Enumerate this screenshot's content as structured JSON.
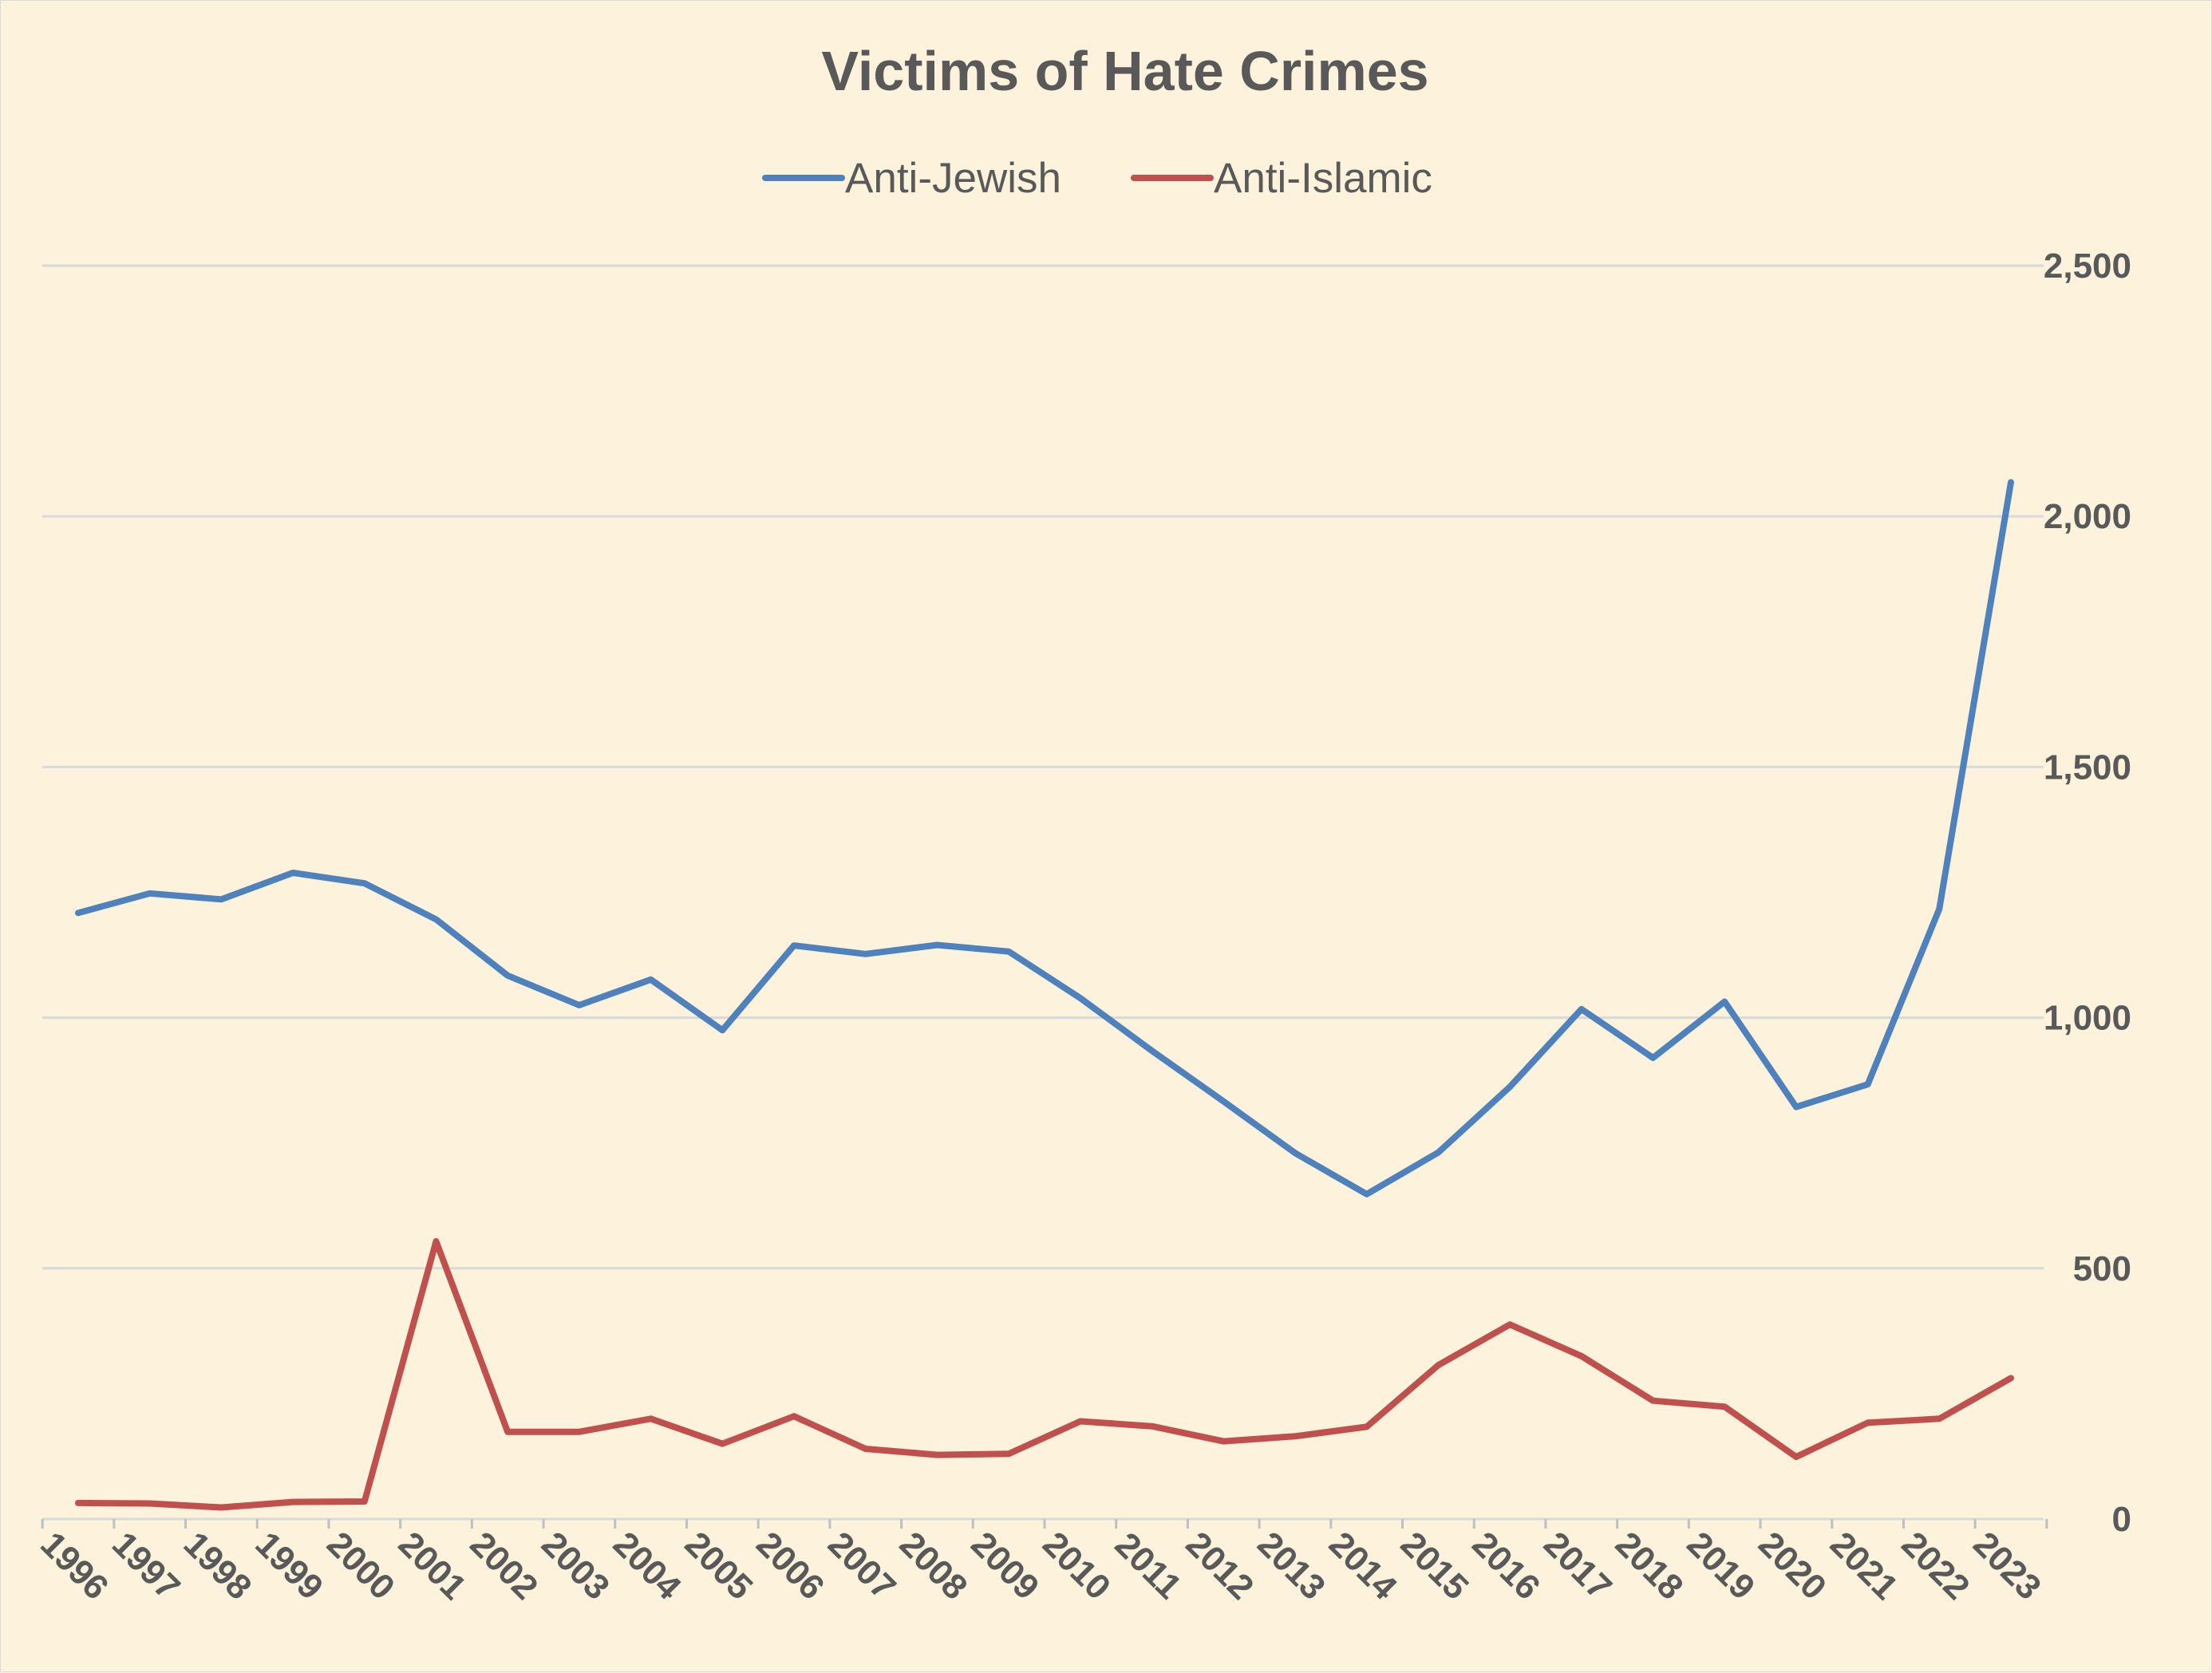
{
  "chart_data": {
    "type": "line",
    "title": "Victims of Hate Crimes",
    "xlabel": "",
    "ylabel": "",
    "ylim": [
      0,
      2500
    ],
    "yticks": [
      0,
      500,
      1000,
      1500,
      2000,
      2500
    ],
    "ytick_labels": [
      "0",
      "500",
      "1,000",
      "1,500",
      "2,000",
      "2,500"
    ],
    "y_axis_side": "right",
    "grid": "horizontal",
    "legend_position": "top",
    "categories": [
      "1996",
      "1997",
      "1998",
      "1999",
      "2000",
      "2001",
      "2002",
      "2003",
      "2004",
      "2005",
      "2006",
      "2007",
      "2008",
      "2009",
      "2010",
      "2011",
      "2012",
      "2013",
      "2014",
      "2015",
      "2016",
      "2017",
      "2018",
      "2019",
      "2020",
      "2021",
      "2022",
      "2023"
    ],
    "series": [
      {
        "name": "Anti-Jewish",
        "color": "#4f81bd",
        "values": [
          1209,
          1248,
          1236,
          1289,
          1268,
          1196,
          1084,
          1025,
          1076,
          975,
          1144,
          1127,
          1145,
          1132,
          1039,
          934,
          833,
          730,
          648,
          731,
          862,
          1017,
          920,
          1032,
          822,
          867,
          1217,
          2068
        ]
      },
      {
        "name": "Anti-Islamic",
        "color": "#c0504d",
        "values": [
          32,
          31,
          23,
          34,
          35,
          554,
          174,
          174,
          200,
          150,
          205,
          140,
          128,
          130,
          195,
          185,
          155,
          165,
          184,
          307,
          388,
          325,
          236,
          224,
          124,
          192,
          200,
          281
        ]
      }
    ]
  }
}
